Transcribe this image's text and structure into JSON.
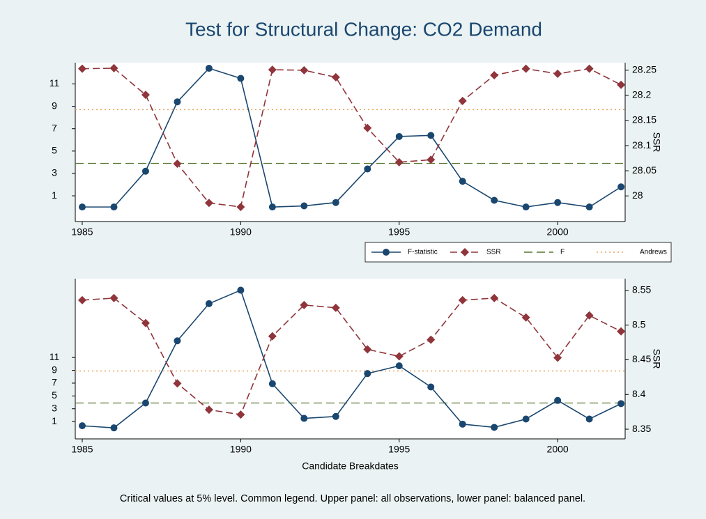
{
  "title": "Test for Structural Change: CO2 Demand",
  "note": "Critical values at 5% level. Common legend. Upper panel: all observations, lower panel: balanced panel.",
  "chart_data": [
    {
      "type": "line",
      "x": [
        1985,
        1986,
        1987,
        1988,
        1989,
        1990,
        1991,
        1992,
        1993,
        1994,
        1995,
        1996,
        1997,
        1998,
        1999,
        2000,
        2001,
        2002
      ],
      "xlim": [
        1984.78,
        2002.13
      ],
      "xticks": [
        1985,
        1990,
        1995,
        2000
      ],
      "ylim": [
        -1.3,
        12.9
      ],
      "yticks": [
        1,
        3,
        5,
        7,
        9,
        11
      ],
      "y2lim": [
        27.949,
        28.265
      ],
      "y2ticks": [
        28,
        28.05,
        28.1,
        28.15,
        28.2,
        28.25
      ],
      "y2_label": "SSR",
      "series": [
        {
          "name": "F-statistic",
          "color": "#1a476f",
          "marker": "circle",
          "values": [
            0,
            0,
            3.2,
            9.4,
            12.4,
            11.5,
            0,
            0.1,
            0.4,
            3.4,
            6.3,
            6.4,
            2.3,
            0.6,
            0,
            0.4,
            0,
            1.8
          ]
        },
        {
          "name": "SSR",
          "color": "#90353b",
          "marker": "diamond",
          "dash": true,
          "axis": "y2",
          "values": [
            28.253,
            28.254,
            28.201,
            28.064,
            27.986,
            27.978,
            28.251,
            28.25,
            28.236,
            28.135,
            28.067,
            28.072,
            28.189,
            28.24,
            28.253,
            28.243,
            28.253,
            28.221
          ]
        }
      ],
      "hlines": [
        {
          "name": "F",
          "color": "#55752f",
          "style": "dashed",
          "value": 3.9
        },
        {
          "name": "Andrews",
          "color": "#e8a35a",
          "style": "dotted",
          "value": 8.7
        }
      ]
    },
    {
      "type": "line",
      "x": [
        1985,
        1986,
        1987,
        1988,
        1989,
        1990,
        1991,
        1992,
        1993,
        1994,
        1995,
        1996,
        1997,
        1998,
        1999,
        2000,
        2001,
        2002
      ],
      "xlim": [
        1984.78,
        2002.13
      ],
      "xticks": [
        1985,
        1990,
        1995,
        2000
      ],
      "x_label": "Candidate Breakdates",
      "ylim": [
        -1.7,
        23.3
      ],
      "yticks": [
        1,
        3,
        5,
        7,
        9,
        11
      ],
      "y2lim": [
        8.336,
        8.567
      ],
      "y2ticks": [
        8.35,
        8.4,
        8.45,
        8.5,
        8.55
      ],
      "y2_label": "SSR",
      "series": [
        {
          "color": "#1a476f",
          "marker": "circle",
          "values": [
            0.35,
            0.02,
            3.9,
            13.6,
            19.4,
            21.5,
            6.9,
            1.5,
            1.8,
            8.5,
            9.7,
            6.4,
            0.6,
            0.1,
            1.4,
            4.3,
            1.4,
            3.8
          ]
        },
        {
          "color": "#90353b",
          "marker": "diamond",
          "dash": true,
          "axis": "y2",
          "values": [
            8.536,
            8.539,
            8.503,
            8.416,
            8.378,
            8.371,
            8.484,
            8.529,
            8.525,
            8.465,
            8.455,
            8.479,
            8.536,
            8.539,
            8.511,
            8.453,
            8.514,
            8.491
          ]
        }
      ],
      "hlines": [
        {
          "color": "#55752f",
          "style": "dashed",
          "value": 3.9
        },
        {
          "color": "#e8a35a",
          "style": "dotted",
          "value": 8.9
        }
      ]
    }
  ]
}
